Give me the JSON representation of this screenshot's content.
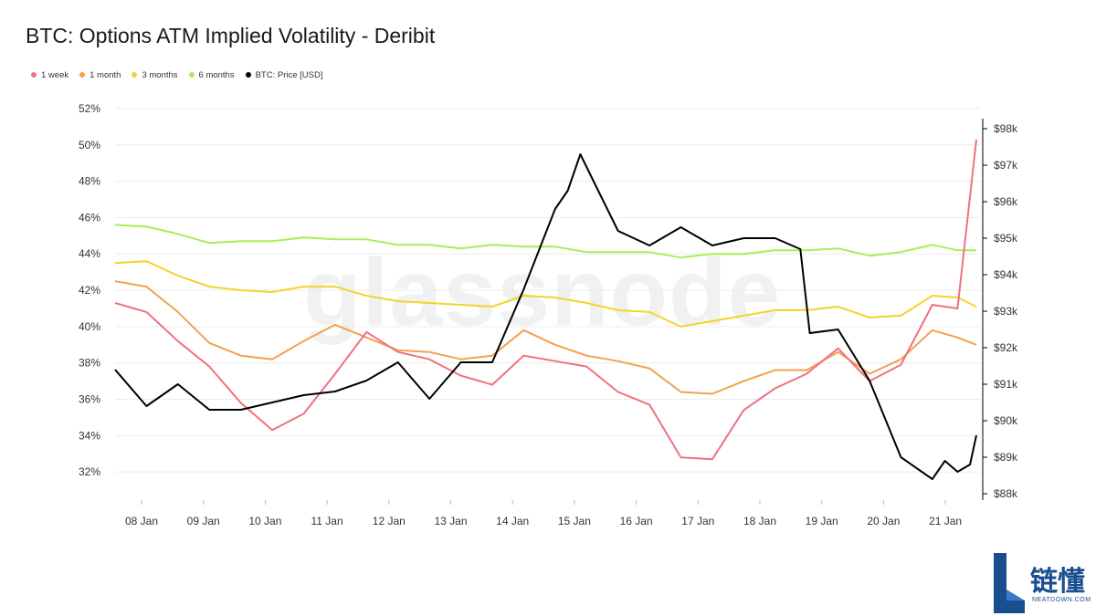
{
  "title": "BTC: Options ATM Implied Volatility - Deribit",
  "legend": [
    {
      "label": "1 week",
      "color": "#f0707f"
    },
    {
      "label": "1 month",
      "color": "#f5a04e"
    },
    {
      "label": "3 months",
      "color": "#f5d327"
    },
    {
      "label": "6 months",
      "color": "#a8ee56"
    },
    {
      "label": "BTC: Price [USD]",
      "color": "#000000"
    }
  ],
  "watermark": "glassnode",
  "brand": {
    "cn": "链懂",
    "en": "NEATDOWN.COM"
  },
  "chart_data": {
    "type": "line",
    "x_ticks": [
      "08 Jan",
      "09 Jan",
      "10 Jan",
      "11 Jan",
      "12 Jan",
      "13 Jan",
      "14 Jan",
      "15 Jan",
      "16 Jan",
      "17 Jan",
      "18 Jan",
      "19 Jan",
      "20 Jan",
      "21 Jan"
    ],
    "x_range": [
      "07 Jan 21:00",
      "21 Jan 14:00"
    ],
    "y_left": {
      "ticks": [
        "32%",
        "34%",
        "36%",
        "38%",
        "40%",
        "42%",
        "44%",
        "46%",
        "48%",
        "50%",
        "52%"
      ],
      "ylim": [
        31,
        52
      ]
    },
    "y_right": {
      "ticks": [
        "$88k",
        "$89k",
        "$90k",
        "$91k",
        "$92k",
        "$93k",
        "$94k",
        "$95k",
        "$96k",
        "$97k",
        "$98k"
      ],
      "ylim": [
        88000,
        98000
      ]
    },
    "grid": true,
    "legend_position": "top-left",
    "x_day_offsets": [
      0,
      0.5,
      1,
      1.5,
      2,
      2.5,
      3,
      3.5,
      4,
      4.5,
      5,
      5.5,
      6,
      6.5,
      7,
      7.5,
      8,
      8.5,
      9,
      9.5,
      10,
      10.5,
      11,
      11.5,
      12,
      12.5,
      13,
      13.4,
      13.7
    ],
    "series": [
      {
        "name": "1 week",
        "axis": "left",
        "color": "#f0707f",
        "values": [
          41.3,
          40.8,
          39.2,
          37.8,
          35.8,
          34.3,
          35.2,
          37.4,
          39.7,
          38.6,
          38.2,
          37.3,
          36.8,
          38.4,
          38.1,
          37.8,
          36.4,
          35.7,
          32.8,
          32.7,
          35.4,
          36.6,
          37.4,
          38.8,
          37.0,
          37.9,
          41.2,
          41.0,
          50.3
        ]
      },
      {
        "name": "1 month",
        "axis": "left",
        "color": "#f5a04e",
        "values": [
          42.5,
          42.2,
          40.8,
          39.1,
          38.4,
          38.2,
          39.2,
          40.1,
          39.4,
          38.7,
          38.6,
          38.2,
          38.4,
          39.8,
          39.0,
          38.4,
          38.1,
          37.7,
          36.4,
          36.3,
          37.0,
          37.6,
          37.6,
          38.6,
          37.4,
          38.2,
          39.8,
          39.4,
          39.0
        ]
      },
      {
        "name": "3 months",
        "axis": "left",
        "color": "#f5d327",
        "values": [
          43.5,
          43.6,
          42.8,
          42.2,
          42.0,
          41.9,
          42.2,
          42.2,
          41.7,
          41.4,
          41.3,
          41.2,
          41.1,
          41.7,
          41.6,
          41.3,
          40.9,
          40.8,
          40.0,
          40.3,
          40.6,
          40.9,
          40.9,
          41.1,
          40.5,
          40.6,
          41.7,
          41.6,
          41.1
        ]
      },
      {
        "name": "6 months",
        "axis": "left",
        "color": "#a8ee56",
        "values": [
          45.6,
          45.5,
          45.1,
          44.6,
          44.7,
          44.7,
          44.9,
          44.8,
          44.8,
          44.5,
          44.5,
          44.3,
          44.5,
          44.4,
          44.4,
          44.1,
          44.1,
          44.1,
          43.8,
          44.0,
          44.0,
          44.2,
          44.2,
          44.3,
          43.9,
          44.1,
          44.5,
          44.2,
          44.2
        ]
      },
      {
        "name": "BTC: Price [USD]",
        "axis": "right",
        "color": "#000000",
        "values": [
          91.4,
          90.4,
          91.0,
          90.3,
          90.3,
          90.5,
          90.7,
          90.8,
          91.1,
          91.6,
          90.6,
          91.6,
          91.6,
          93.6,
          95.8,
          96.3,
          97.3,
          96.6,
          95.2,
          94.8,
          95.3,
          94.8,
          95.0,
          95.0,
          94.7,
          92.4,
          92.5,
          91.1,
          89.0,
          88.4,
          88.9,
          88.6,
          88.8,
          89.6
        ]
      },
      {
        "name": "_btc_x",
        "axis": "none",
        "color": "#000000",
        "values": []
      }
    ],
    "btc_x_day_offsets": [
      0,
      0.5,
      1,
      1.5,
      2,
      2.5,
      3,
      3.5,
      4,
      4.5,
      5,
      5.5,
      6,
      6.5,
      7,
      7.2,
      7.4,
      7.6,
      8,
      8.5,
      9,
      9.5,
      10,
      10.5,
      10.9,
      11.05,
      11.5,
      12,
      12.5,
      13,
      13.2,
      13.4,
      13.6,
      13.7
    ]
  }
}
